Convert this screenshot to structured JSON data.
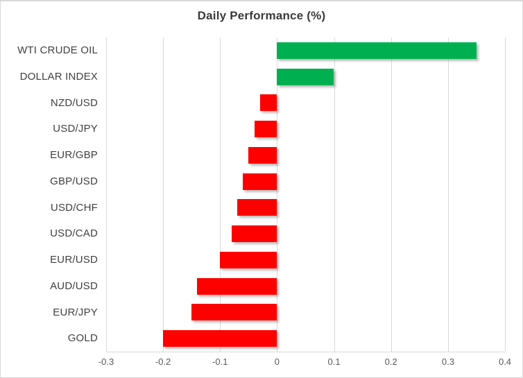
{
  "chart": {
    "background_color": "#ffffff",
    "frame_border_color": "#d9d9d9"
  },
  "chart_data": {
    "type": "bar",
    "orientation": "horizontal",
    "title": "Daily Performance (%)",
    "categories": [
      "WTI CRUDE OIL",
      "DOLLAR INDEX",
      "NZD/USD",
      "USD/JPY",
      "EUR/GBP",
      "GBP/USD",
      "USD/CHF",
      "USD/CAD",
      "EUR/USD",
      "AUD/USD",
      "EUR/JPY",
      "GOLD"
    ],
    "values": [
      0.35,
      0.1,
      -0.03,
      -0.04,
      -0.05,
      -0.06,
      -0.07,
      -0.08,
      -0.1,
      -0.14,
      -0.15,
      -0.2
    ],
    "xlabel": "",
    "ylabel": "",
    "xlim": [
      -0.3,
      0.4
    ],
    "x_ticks": [
      -0.3,
      -0.2,
      -0.1,
      0,
      0.1,
      0.2,
      0.3,
      0.4
    ],
    "x_tick_labels": [
      "-0.3",
      "-0.2",
      "-0.1",
      "0",
      "0.1",
      "0.2",
      "0.3",
      "0.4"
    ],
    "positive_color": "#00B050",
    "negative_color": "#FF0000",
    "grid": true,
    "gridline_color": "#d9d9d9",
    "legend": "none"
  }
}
